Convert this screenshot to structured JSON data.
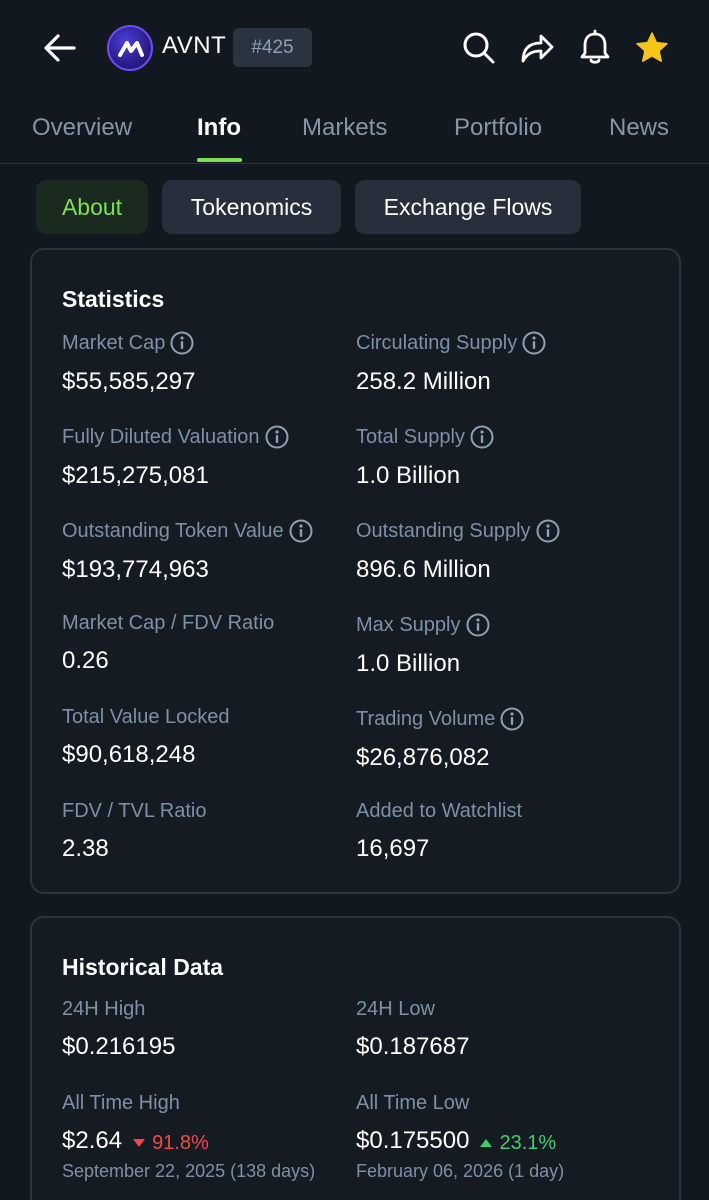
{
  "header": {
    "coin_name": "AVNT",
    "rank": "#425",
    "colors": {
      "accent": "#7fe05a",
      "star": "#f5c518",
      "background": "#121820"
    }
  },
  "tabs": [
    {
      "label": "Overview"
    },
    {
      "label": "Info"
    },
    {
      "label": "Markets"
    },
    {
      "label": "Portfolio"
    },
    {
      "label": "News"
    }
  ],
  "subtabs": [
    {
      "label": "About"
    },
    {
      "label": "Tokenomics"
    },
    {
      "label": "Exchange Flows"
    }
  ],
  "statistics": {
    "title": "Statistics",
    "items": [
      {
        "label": "Market Cap",
        "value": "$55,585,297"
      },
      {
        "label": "Circulating Supply",
        "value": "258.2 Million"
      },
      {
        "label": "Fully Diluted Valuation",
        "value": "$215,275,081"
      },
      {
        "label": "Total Supply",
        "value": "1.0 Billion"
      },
      {
        "label": "Outstanding Token Value",
        "value": "$193,774,963"
      },
      {
        "label": "Outstanding Supply",
        "value": "896.6 Million"
      },
      {
        "label": "Market Cap / FDV Ratio",
        "value": "0.26"
      },
      {
        "label": "Max Supply",
        "value": "1.0 Billion"
      },
      {
        "label": "Total Value Locked",
        "value": "$90,618,248"
      },
      {
        "label": "Trading Volume",
        "value": "$26,876,082"
      },
      {
        "label": "FDV / TVL Ratio",
        "value": "2.38"
      },
      {
        "label": "Added to Watchlist",
        "value": "16,697"
      }
    ]
  },
  "historical": {
    "title": "Historical Data",
    "high_24h": {
      "label": "24H High",
      "value": "$0.216195"
    },
    "low_24h": {
      "label": "24H Low",
      "value": "$0.187687"
    },
    "ath": {
      "label": "All Time High",
      "value": "$2.64",
      "change": "91.8%",
      "date": "September 22, 2025 (138 days)"
    },
    "atl": {
      "label": "All Time Low",
      "value": "$0.175500",
      "change": "23.1%",
      "date": "February 06, 2026 (1 day)"
    }
  }
}
